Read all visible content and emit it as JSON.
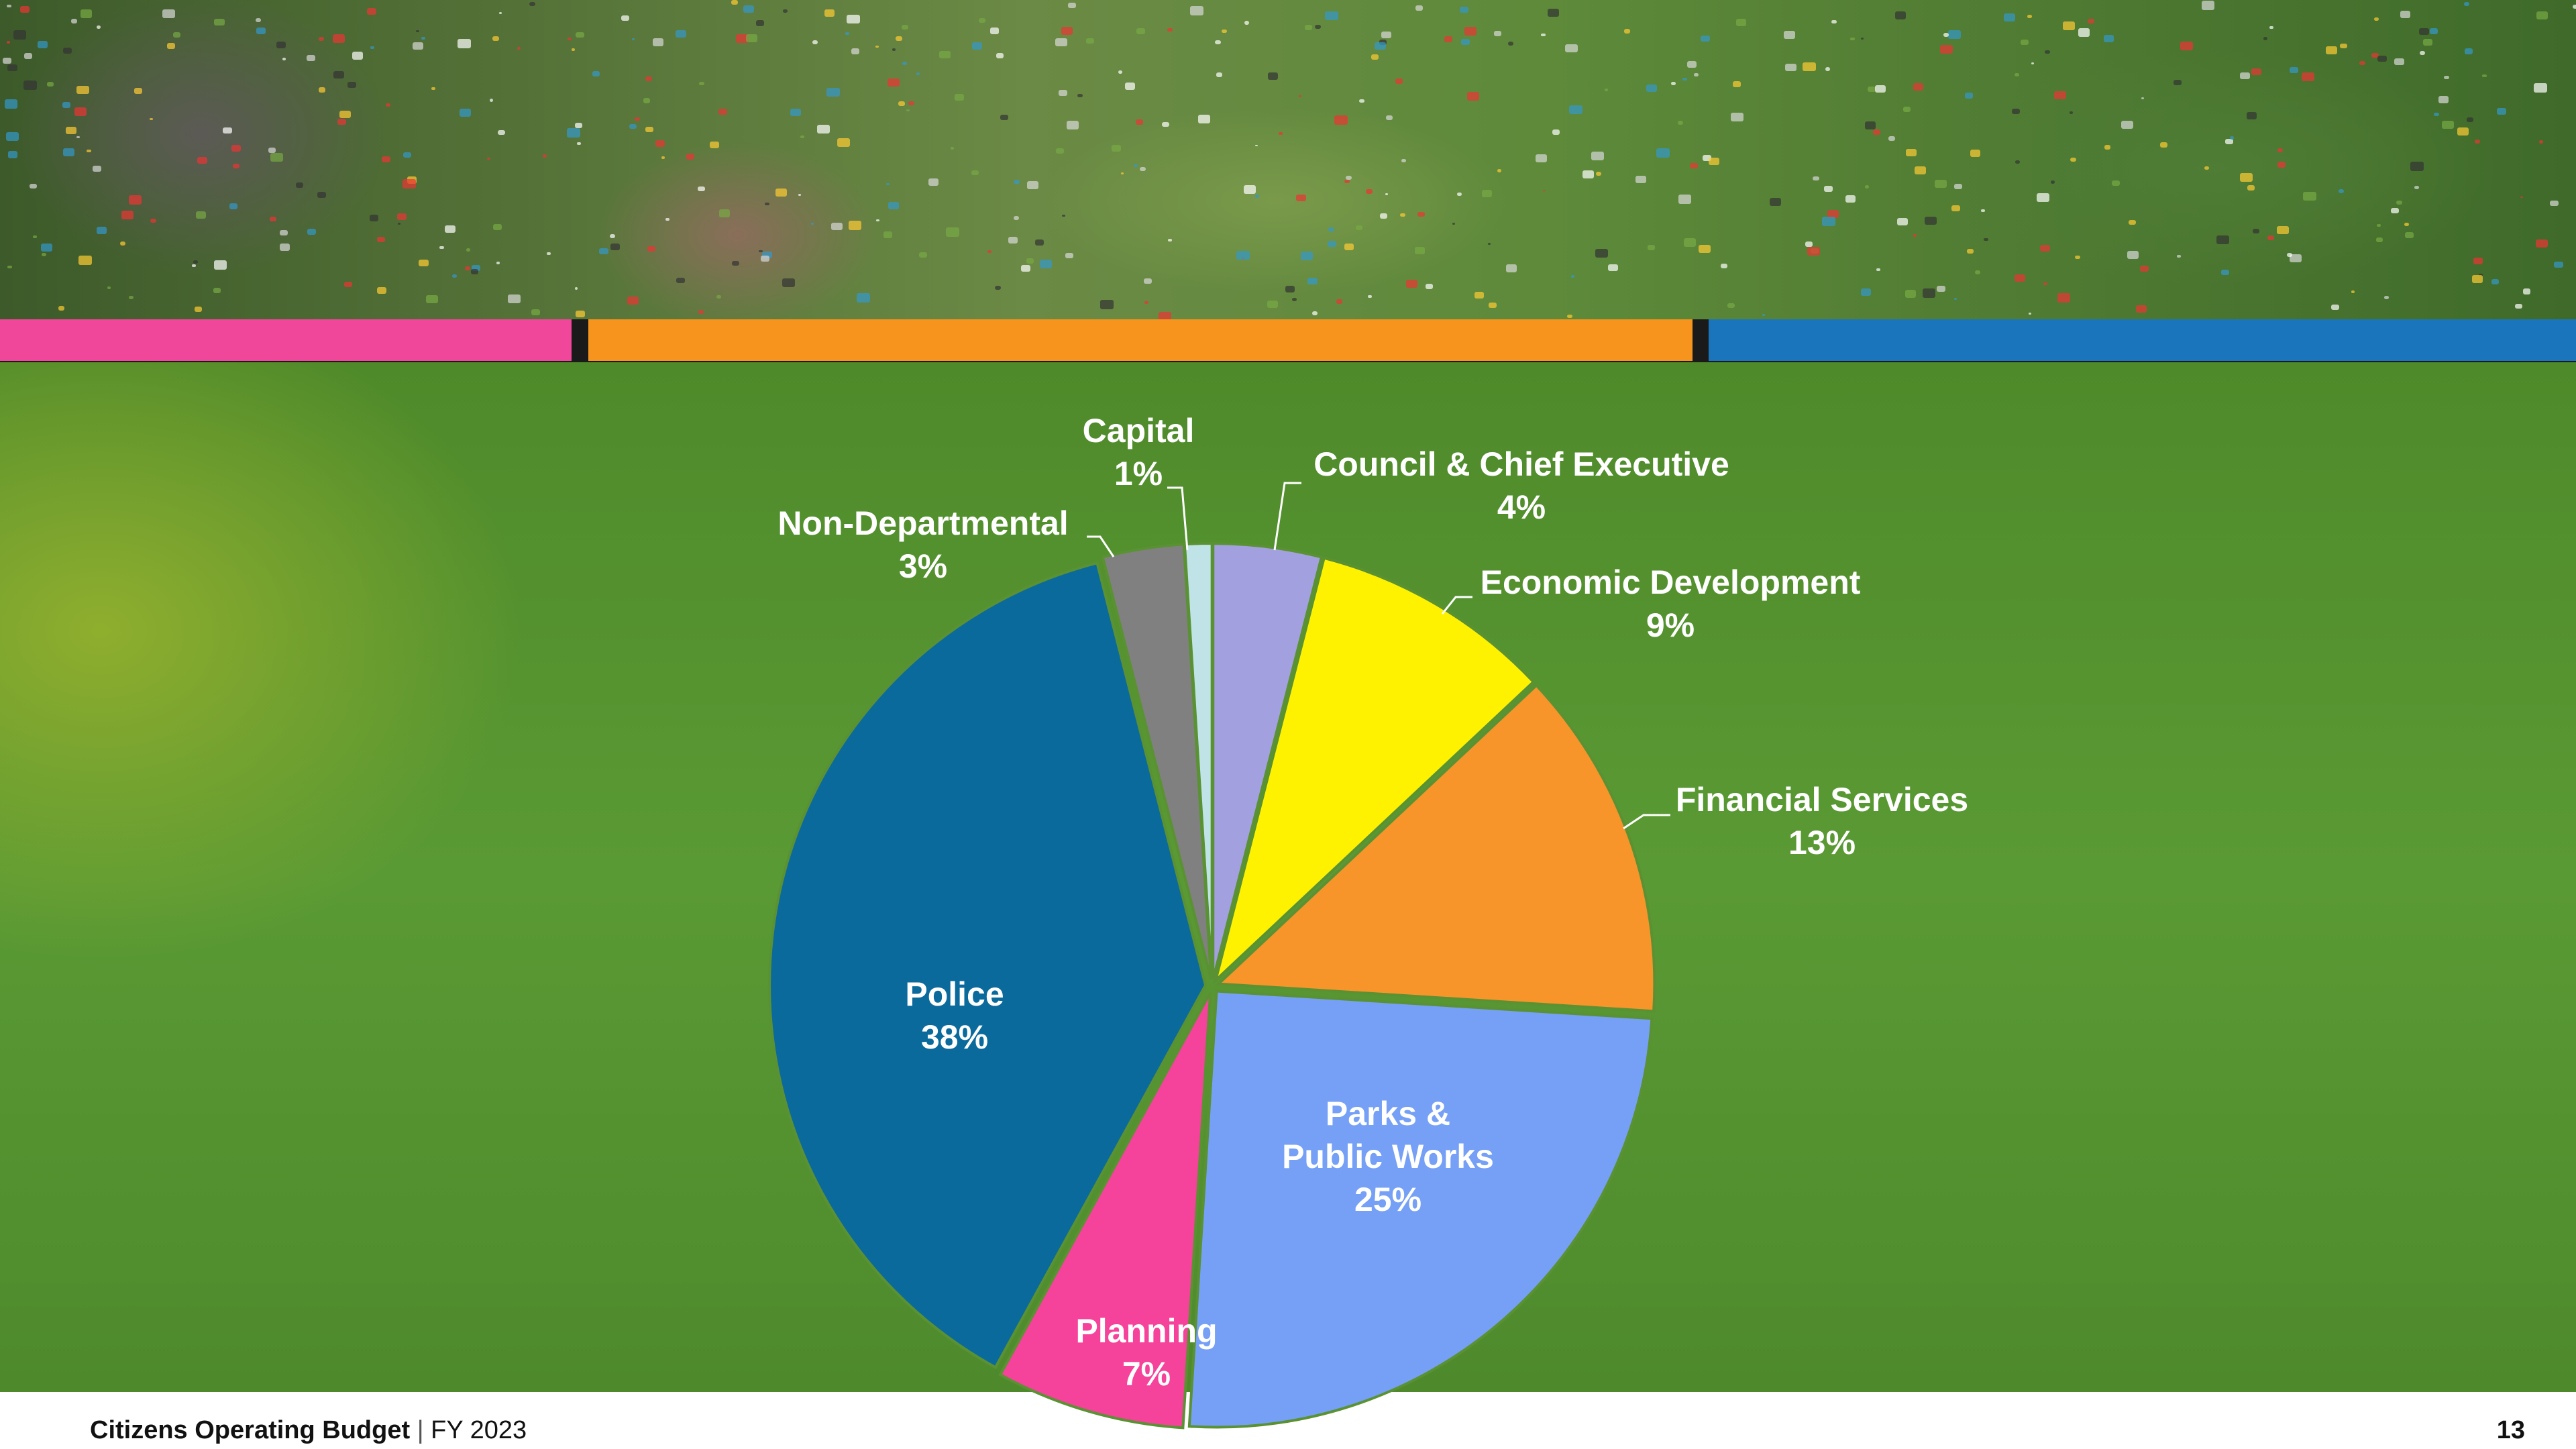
{
  "footer": {
    "title": "Citizens Operating Budget",
    "separator": "|",
    "fiscal_year": "FY 2023",
    "page_number": "13"
  },
  "header_bar_colors": [
    "#f0479a",
    "#f7941d",
    "#1b75bc"
  ],
  "chart_data": {
    "type": "pie",
    "title": "",
    "start": "top, clockwise",
    "slices": [
      {
        "label": "Council & Chief Executive",
        "value": 4,
        "display": "4%",
        "color": "#a3a0e0"
      },
      {
        "label": "Economic Development",
        "value": 9,
        "display": "9%",
        "color": "#fff200"
      },
      {
        "label": "Financial Services",
        "value": 13,
        "display": "13%",
        "color": "#f7942a"
      },
      {
        "label": "Parks & Public Works",
        "label_lines": [
          "Parks &",
          "Public Works"
        ],
        "value": 25,
        "display": "25%",
        "color": "#75a0f5"
      },
      {
        "label": "Planning",
        "value": 7,
        "display": "7%",
        "color": "#f5429b"
      },
      {
        "label": "Police",
        "value": 38,
        "display": "38%",
        "color": "#0b6a9c"
      },
      {
        "label": "Non-Departmental",
        "value": 3,
        "display": "3%",
        "color": "#808080"
      },
      {
        "label": "Capital",
        "value": 1,
        "display": "1%",
        "color": "#bfe3e6"
      }
    ]
  }
}
